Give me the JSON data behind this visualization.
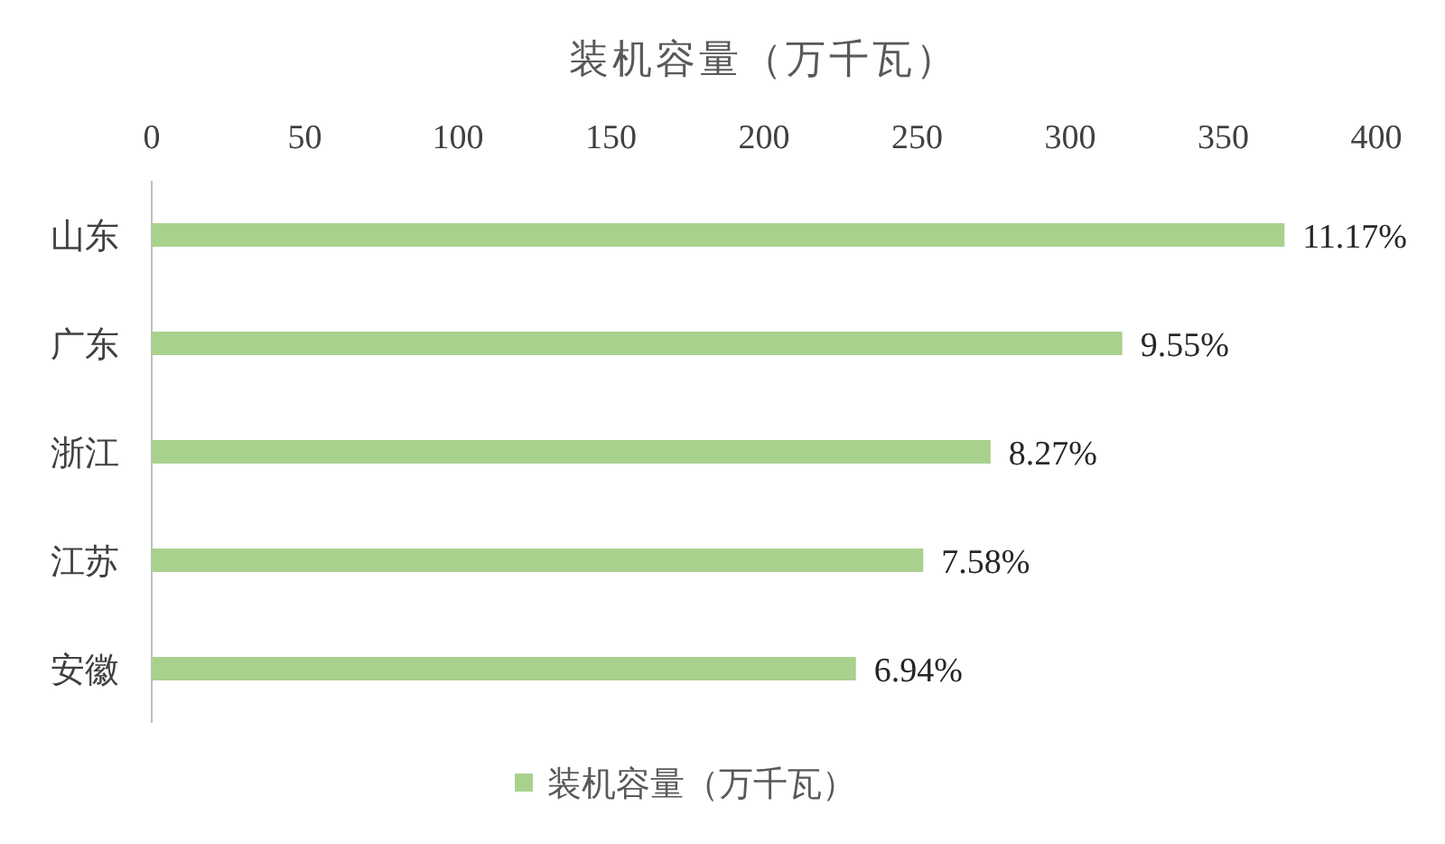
{
  "chart_data": {
    "type": "bar",
    "orientation": "horizontal",
    "title": "装机容量（万千瓦）",
    "categories": [
      "山东",
      "广东",
      "浙江",
      "江苏",
      "安徽"
    ],
    "series": [
      {
        "name": "装机容量（万千瓦）",
        "color": "#a9d18e",
        "values": [
          370,
          317,
          274,
          252,
          230
        ]
      }
    ],
    "annotations": [
      {
        "text": "11.17%",
        "x": 370,
        "y": "山东"
      },
      {
        "text": "9.55%",
        "x": 317,
        "y": "广东"
      },
      {
        "text": "8.27%",
        "x": 274,
        "y": "浙江"
      },
      {
        "text": "7.58%",
        "x": 252,
        "y": "江苏"
      },
      {
        "text": "6.94%",
        "x": 230,
        "y": "安徽"
      }
    ],
    "xlim": [
      0,
      400
    ],
    "xticks": [
      0,
      50,
      100,
      150,
      200,
      250,
      300,
      350,
      400
    ],
    "grid": false,
    "legend": "bottom"
  }
}
